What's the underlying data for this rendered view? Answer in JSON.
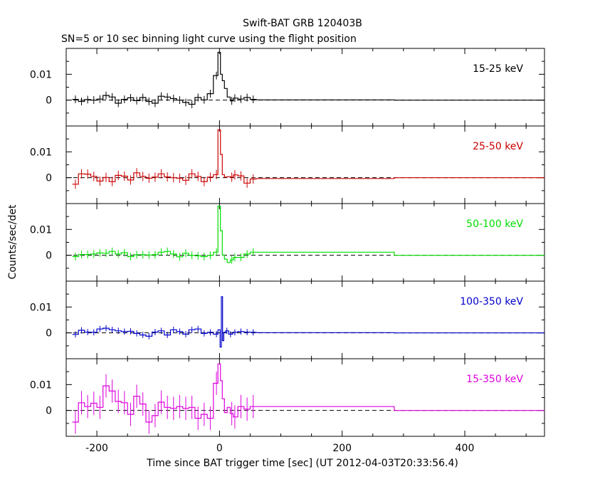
{
  "figure": {
    "title": "Swift-BAT GRB 120403B",
    "subtitle": "SN=5 or 10 sec binning light curve using the flight position",
    "xlabel": "Time since BAT trigger time [sec] (UT 2012-04-03T20:33:56.4)",
    "ylabel": "Counts/sec/det"
  },
  "chart_data": {
    "type": "line",
    "layout": "5 stacked panels sharing x axis",
    "xlim": [
      -250,
      530
    ],
    "x_ticks": [
      -200,
      0,
      200,
      400
    ],
    "x_tick_labels": [
      "-200",
      "0",
      "200",
      "400"
    ],
    "ylim": [
      -0.01,
      0.02
    ],
    "y_ticks": [
      0,
      0.01
    ],
    "y_tick_labels": [
      "0",
      "0.01"
    ],
    "zero_line": "dashed",
    "series": [
      {
        "name": "15-25 keV",
        "color": "#000000",
        "x": [
          -235,
          -225,
          -215,
          -205,
          -195,
          -185,
          -175,
          -165,
          -155,
          -145,
          -135,
          -125,
          -115,
          -105,
          -95,
          -85,
          -75,
          -65,
          -55,
          -45,
          -35,
          -25,
          -15,
          -5,
          0,
          3,
          6,
          10,
          15,
          20,
          25,
          35,
          45,
          55
        ],
        "y": [
          0.0003,
          -0.0005,
          0.0002,
          0,
          0.0004,
          0.0018,
          0.0012,
          -0.0012,
          0.0003,
          0.0009,
          -0.0002,
          0.001,
          -0.0005,
          -0.0012,
          0.0015,
          0.0012,
          0.0006,
          0,
          -0.0009,
          -0.0016,
          0.001,
          0.0001,
          0.0025,
          0.0095,
          0.0185,
          0.01,
          0.0075,
          0.0045,
          0.0012,
          -0.0003,
          0.0008,
          0.0004,
          0.001,
          0.0003
        ],
        "error": 0.0015,
        "long_bins": [
          {
            "x0": 60,
            "x1": 285,
            "y": 0.0001
          },
          {
            "x0": 285,
            "x1": 530,
            "y": 0
          }
        ]
      },
      {
        "name": "25-50 keV",
        "color": "#cc0000",
        "x": [
          -235,
          -225,
          -215,
          -205,
          -195,
          -185,
          -175,
          -165,
          -155,
          -145,
          -135,
          -125,
          -115,
          -105,
          -95,
          -85,
          -75,
          -65,
          -55,
          -45,
          -35,
          -25,
          -15,
          -5,
          0,
          3,
          6,
          10,
          15,
          20,
          25,
          35,
          45,
          55
        ],
        "y": [
          -0.0025,
          0.0015,
          0.0014,
          0.0005,
          -0.0013,
          0.0001,
          -0.0015,
          0.0009,
          0.0006,
          -0.0009,
          0.0019,
          0.0005,
          -0.0002,
          0.0002,
          0.0015,
          0.0003,
          0,
          -0.0002,
          -0.001,
          0.0015,
          0.0005,
          -0.0015,
          0.0002,
          0.0012,
          0.0185,
          0.009,
          0.0012,
          0.0002,
          0.0004,
          0.0002,
          0.0011,
          0.0007,
          -0.0021,
          -0.0005
        ],
        "error": 0.0018,
        "long_bins": [
          {
            "x0": 60,
            "x1": 285,
            "y": -0.0003
          },
          {
            "x0": 285,
            "x1": 530,
            "y": 0
          }
        ]
      },
      {
        "name": "50-100 keV",
        "color": "#00dd00",
        "x": [
          -235,
          -225,
          -215,
          -205,
          -195,
          -185,
          -175,
          -165,
          -155,
          -145,
          -135,
          -125,
          -115,
          -105,
          -95,
          -85,
          -75,
          -65,
          -55,
          -45,
          -35,
          -25,
          -15,
          -5,
          0,
          3,
          6,
          10,
          15,
          20,
          25,
          35,
          45,
          55
        ],
        "y": [
          -0.0005,
          0.0003,
          0.0003,
          0.0005,
          0.0009,
          0.0008,
          0.0015,
          0.0005,
          0.001,
          -0.0005,
          0.0002,
          0.0002,
          0.0001,
          0.0002,
          0.0012,
          0.0015,
          0.0005,
          -0.0006,
          0.0008,
          0,
          -0.0002,
          -0.0005,
          0,
          0.0012,
          0.019,
          0.0095,
          0.0001,
          -0.0015,
          -0.0028,
          -0.0018,
          -0.0008,
          -0.0008,
          0.0005,
          0.0012
        ],
        "error": 0.0015,
        "long_bins": [
          {
            "x0": 60,
            "x1": 285,
            "y": 0.0012
          },
          {
            "x0": 285,
            "x1": 530,
            "y": 0
          }
        ]
      },
      {
        "name": "100-350 keV",
        "color": "#0000cc",
        "x": [
          -235,
          -225,
          -215,
          -205,
          -195,
          -185,
          -175,
          -165,
          -155,
          -145,
          -135,
          -125,
          -115,
          -105,
          -95,
          -85,
          -75,
          -65,
          -55,
          -45,
          -35,
          -25,
          -15,
          -5,
          0,
          2,
          4,
          6,
          8,
          12,
          18,
          25,
          35,
          45,
          55
        ],
        "y": [
          -0.0006,
          0.001,
          0.0003,
          0.0002,
          0.0015,
          0.0018,
          0.0012,
          0.0008,
          0.0005,
          0.0006,
          -0.0002,
          -0.0008,
          -0.0013,
          0.0003,
          0.0008,
          -0.0008,
          0.0012,
          0.0005,
          -0.0005,
          0.0012,
          0.0015,
          -0.0002,
          0.0002,
          -0.0005,
          0.0012,
          -0.0055,
          0.014,
          -0.003,
          0.0002,
          0.0008,
          -0.0005,
          0.0002,
          0.0005,
          0.0003,
          0.0002
        ],
        "error": 0.0012,
        "long_bins": [
          {
            "x0": 60,
            "x1": 285,
            "y": 0.0001
          },
          {
            "x0": 285,
            "x1": 530,
            "y": 0
          }
        ]
      },
      {
        "name": "15-350 keV",
        "color": "#dd00dd",
        "x": [
          -235,
          -225,
          -215,
          -205,
          -195,
          -185,
          -175,
          -165,
          -155,
          -145,
          -135,
          -125,
          -115,
          -105,
          -95,
          -85,
          -75,
          -65,
          -55,
          -45,
          -35,
          -25,
          -15,
          -5,
          0,
          3,
          6,
          10,
          15,
          20,
          25,
          35,
          45,
          55
        ],
        "y": [
          -0.0045,
          0.003,
          0.0015,
          0.0028,
          0.0012,
          0.0095,
          0.0075,
          0.0035,
          0.003,
          -0.0015,
          0.0055,
          0.0025,
          -0.0045,
          -0.002,
          0.0032,
          0.0012,
          0.0008,
          0.0015,
          0.0008,
          0.0012,
          -0.003,
          -0.0015,
          -0.003,
          0.0105,
          0.018,
          0.0115,
          0.0045,
          -0.0008,
          0.0012,
          -0.0012,
          -0.0025,
          0.0015,
          0.0005,
          0.0015
        ],
        "error": 0.0045,
        "long_bins": [
          {
            "x0": 60,
            "x1": 285,
            "y": 0.0015
          },
          {
            "x0": 285,
            "x1": 530,
            "y": 0
          }
        ]
      }
    ]
  }
}
